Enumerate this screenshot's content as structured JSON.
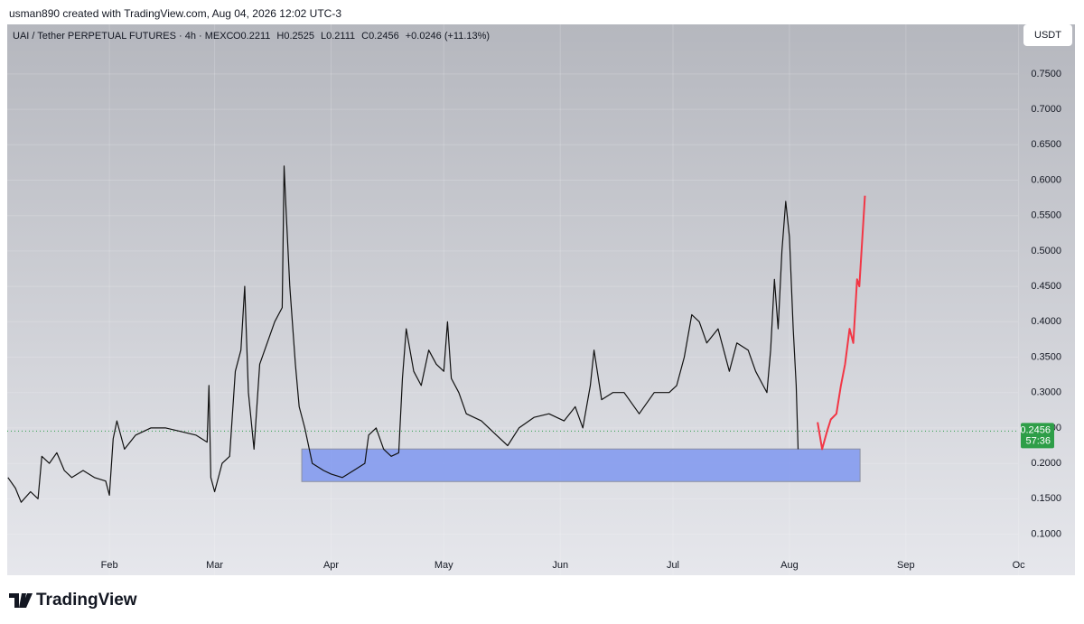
{
  "header": "usman890 created with TradingView.com, Aug 04, 2026 12:02 UTC-3",
  "footer": "TradingView",
  "chart_data": {
    "type": "line",
    "title": "UAI / Tether PERPETUAL FUTURES · 4h · MEXC",
    "ohlc": [
      "O0.2211",
      "H0.2525",
      "L0.2111",
      "C0.2456",
      "+0.0246 (+11.13%)"
    ],
    "currency": "USDT",
    "xlim": [
      3.8,
      288
    ],
    "ylim": [
      0.042,
      0.82
    ],
    "xticks": [
      {
        "value": 31,
        "label": "Feb"
      },
      {
        "value": 59,
        "label": "Mar"
      },
      {
        "value": 90,
        "label": "Apr"
      },
      {
        "value": 120,
        "label": "May"
      },
      {
        "value": 151,
        "label": "Jun"
      },
      {
        "value": 181,
        "label": "Jul"
      },
      {
        "value": 212,
        "label": "Aug"
      },
      {
        "value": 243,
        "label": "Sep"
      },
      {
        "value": 273,
        "label": "Oc"
      }
    ],
    "yticks": [
      {
        "value": 0.1,
        "label": "0.1000"
      },
      {
        "value": 0.15,
        "label": "0.1500"
      },
      {
        "value": 0.2,
        "label": "0.2000"
      },
      {
        "value": 0.25,
        "label": "0.2500"
      },
      {
        "value": 0.3,
        "label": "0.3000"
      },
      {
        "value": 0.35,
        "label": "0.3500"
      },
      {
        "value": 0.4,
        "label": "0.4000"
      },
      {
        "value": 0.45,
        "label": "0.4500"
      },
      {
        "value": 0.5,
        "label": "0.5000"
      },
      {
        "value": 0.55,
        "label": "0.5500"
      },
      {
        "value": 0.6,
        "label": "0.6000"
      },
      {
        "value": 0.65,
        "label": "0.6500"
      },
      {
        "value": 0.7,
        "label": "0.7000"
      },
      {
        "value": 0.75,
        "label": "0.7500"
      }
    ],
    "grid": true,
    "series": [
      {
        "color": "#111111",
        "x": [
          4,
          6,
          7.5,
          10,
          12,
          13,
          15,
          17,
          19,
          21,
          24,
          27,
          30,
          31,
          32,
          33,
          35,
          38,
          42,
          46,
          50,
          54,
          57,
          57.5,
          58,
          59,
          61,
          63,
          64.5,
          66,
          67,
          68,
          69.5,
          71,
          73,
          75,
          77,
          77.5,
          78,
          79,
          80.5,
          81.5,
          83,
          85,
          88,
          90,
          93,
          96,
          99,
          100,
          102,
          104,
          106,
          108,
          109,
          110,
          112,
          114,
          116,
          118,
          120,
          121,
          122,
          124,
          126,
          130,
          134,
          137,
          140,
          144,
          148,
          152,
          155,
          157,
          159,
          160,
          162,
          165,
          168,
          172,
          176,
          180,
          182,
          184,
          186,
          188,
          190,
          193,
          196,
          198,
          201,
          203,
          205,
          206,
          207,
          208,
          209,
          210,
          211,
          212,
          213,
          213.8,
          214.3
        ],
        "values": [
          0.18,
          0.165,
          0.145,
          0.16,
          0.15,
          0.21,
          0.2,
          0.215,
          0.19,
          0.18,
          0.19,
          0.18,
          0.175,
          0.155,
          0.235,
          0.26,
          0.22,
          0.24,
          0.25,
          0.25,
          0.245,
          0.24,
          0.23,
          0.31,
          0.18,
          0.16,
          0.2,
          0.21,
          0.33,
          0.36,
          0.45,
          0.3,
          0.22,
          0.34,
          0.37,
          0.4,
          0.42,
          0.62,
          0.56,
          0.45,
          0.34,
          0.28,
          0.25,
          0.2,
          0.19,
          0.185,
          0.18,
          0.19,
          0.2,
          0.24,
          0.25,
          0.22,
          0.21,
          0.215,
          0.32,
          0.39,
          0.33,
          0.31,
          0.36,
          0.34,
          0.33,
          0.4,
          0.32,
          0.3,
          0.27,
          0.26,
          0.24,
          0.225,
          0.25,
          0.265,
          0.27,
          0.26,
          0.28,
          0.25,
          0.31,
          0.36,
          0.29,
          0.3,
          0.3,
          0.27,
          0.3,
          0.3,
          0.31,
          0.35,
          0.41,
          0.4,
          0.37,
          0.39,
          0.33,
          0.37,
          0.36,
          0.33,
          0.31,
          0.3,
          0.36,
          0.46,
          0.39,
          0.5,
          0.57,
          0.52,
          0.39,
          0.31,
          0.22
        ]
      },
      {
        "color": "#f23645",
        "x": [
          219.5,
          220.7,
          222,
          223,
          224.5,
          225.7,
          226.8,
          228,
          229,
          230,
          230.6,
          232.1
        ],
        "values": [
          0.258,
          0.22,
          0.245,
          0.262,
          0.27,
          0.31,
          0.34,
          0.39,
          0.37,
          0.46,
          0.45,
          0.578
        ]
      }
    ],
    "zone": {
      "x": [
        82.2,
        230.8
      ],
      "y": [
        0.1743,
        0.2203
      ],
      "color": "#7f98f0"
    },
    "last_price": 0.2456,
    "countdown": "57:36",
    "last_price_color": "#2e9e48"
  }
}
